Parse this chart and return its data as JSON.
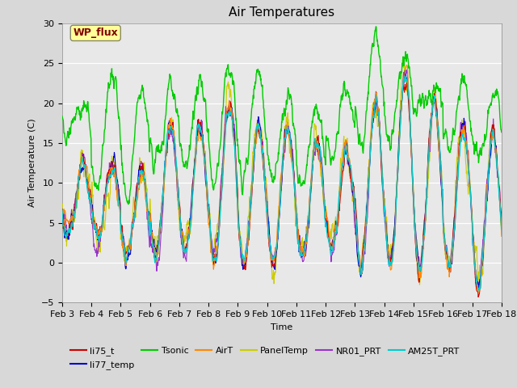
{
  "title": "Air Temperatures",
  "xlabel": "Time",
  "ylabel": "Air Temperature (C)",
  "ylim": [
    -5,
    30
  ],
  "xlim": [
    0,
    15
  ],
  "x_tick_labels": [
    "Feb 3",
    "Feb 4",
    "Feb 5",
    "Feb 6",
    "Feb 7",
    "Feb 8",
    "Feb 9",
    "Feb 10",
    "Feb 11",
    "Feb 12",
    "Feb 13",
    "Feb 14",
    "Feb 15",
    "Feb 16",
    "Feb 17",
    "Feb 18"
  ],
  "background_color": "#d8d8d8",
  "plot_bg_color": "#e8e8e8",
  "series": {
    "li75_t": {
      "color": "#cc0000",
      "lw": 0.8,
      "zorder": 5
    },
    "li77_temp": {
      "color": "#0000cc",
      "lw": 0.8,
      "zorder": 5
    },
    "Tsonic": {
      "color": "#00cc00",
      "lw": 1.0,
      "zorder": 6
    },
    "AirT": {
      "color": "#ff8800",
      "lw": 0.8,
      "zorder": 5
    },
    "PanelTemp": {
      "color": "#cccc00",
      "lw": 0.8,
      "zorder": 4
    },
    "NR01_PRT": {
      "color": "#9933cc",
      "lw": 0.8,
      "zorder": 4
    },
    "AM25T_PRT": {
      "color": "#00cccc",
      "lw": 1.0,
      "zorder": 5
    }
  },
  "annotation": {
    "text": "WP_flux",
    "color": "#800000",
    "bg": "#ffff99",
    "fontsize": 9
  },
  "title_fontsize": 11,
  "legend_fontsize": 8,
  "axis_fontsize": 8
}
